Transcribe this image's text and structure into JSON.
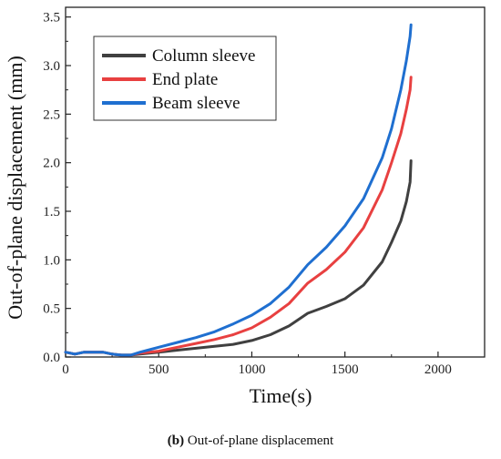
{
  "chart_data": {
    "type": "line",
    "xlabel": "Time(s)",
    "ylabel": "Out-of-plane displacement (mm)",
    "xlim": [
      0,
      2250
    ],
    "ylim": [
      0,
      3.6
    ],
    "xticks": [
      0,
      500,
      1000,
      1500,
      2000
    ],
    "yticks": [
      0.0,
      0.5,
      1.0,
      1.5,
      2.0,
      2.5,
      3.0,
      3.5
    ],
    "xtick_labels": [
      "0",
      "500",
      "1000",
      "1500",
      "2000"
    ],
    "ytick_labels": [
      "0.0",
      "0.5",
      "1.0",
      "1.5",
      "2.0",
      "2.5",
      "3.0",
      "3.5"
    ],
    "legend_position": "top-left",
    "series": [
      {
        "name": "Column sleeve",
        "color": "#404040",
        "x": [
          0,
          50,
          100,
          200,
          250,
          300,
          350,
          400,
          500,
          600,
          700,
          800,
          900,
          1000,
          1100,
          1200,
          1300,
          1400,
          1500,
          1600,
          1700,
          1750,
          1800,
          1830,
          1850,
          1855
        ],
        "y": [
          0.05,
          0.03,
          0.05,
          0.05,
          0.03,
          0.02,
          0.02,
          0.03,
          0.05,
          0.07,
          0.09,
          0.11,
          0.13,
          0.17,
          0.23,
          0.32,
          0.45,
          0.52,
          0.6,
          0.74,
          0.98,
          1.18,
          1.4,
          1.6,
          1.8,
          2.02
        ]
      },
      {
        "name": "End plate",
        "color": "#e84040",
        "x": [
          0,
          50,
          100,
          200,
          250,
          300,
          350,
          400,
          500,
          600,
          700,
          800,
          900,
          1000,
          1100,
          1200,
          1300,
          1400,
          1500,
          1600,
          1700,
          1750,
          1800,
          1830,
          1850,
          1855
        ],
        "y": [
          0.05,
          0.03,
          0.05,
          0.05,
          0.03,
          0.02,
          0.02,
          0.04,
          0.06,
          0.1,
          0.14,
          0.18,
          0.23,
          0.3,
          0.41,
          0.55,
          0.76,
          0.9,
          1.08,
          1.33,
          1.72,
          2.0,
          2.3,
          2.55,
          2.75,
          2.88
        ]
      },
      {
        "name": "Beam sleeve",
        "color": "#1f6fd0",
        "x": [
          0,
          50,
          100,
          200,
          250,
          300,
          350,
          400,
          500,
          600,
          700,
          800,
          900,
          1000,
          1100,
          1200,
          1300,
          1400,
          1500,
          1600,
          1700,
          1750,
          1800,
          1830,
          1850,
          1855
        ],
        "y": [
          0.05,
          0.03,
          0.05,
          0.05,
          0.03,
          0.02,
          0.02,
          0.05,
          0.1,
          0.15,
          0.2,
          0.26,
          0.34,
          0.43,
          0.55,
          0.72,
          0.95,
          1.13,
          1.35,
          1.63,
          2.05,
          2.35,
          2.75,
          3.05,
          3.3,
          3.42
        ]
      }
    ]
  },
  "caption": {
    "label": "(b)",
    "text": " Out-of-plane displacement"
  }
}
